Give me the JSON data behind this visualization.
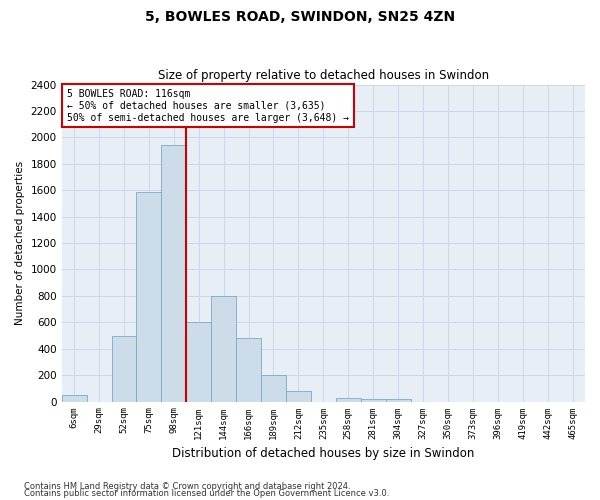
{
  "title": "5, BOWLES ROAD, SWINDON, SN25 4ZN",
  "subtitle": "Size of property relative to detached houses in Swindon",
  "xlabel": "Distribution of detached houses by size in Swindon",
  "ylabel": "Number of detached properties",
  "categories": [
    "6sqm",
    "29sqm",
    "52sqm",
    "75sqm",
    "98sqm",
    "121sqm",
    "144sqm",
    "166sqm",
    "189sqm",
    "212sqm",
    "235sqm",
    "258sqm",
    "281sqm",
    "304sqm",
    "327sqm",
    "350sqm",
    "373sqm",
    "396sqm",
    "419sqm",
    "442sqm",
    "465sqm"
  ],
  "values": [
    50,
    0,
    500,
    1590,
    1940,
    600,
    800,
    480,
    200,
    80,
    0,
    25,
    20,
    20,
    0,
    0,
    0,
    0,
    0,
    0,
    0
  ],
  "bar_color": "#ccdce8",
  "bar_edge_color": "#7aaac8",
  "vline_color": "#cc0000",
  "vline_pos": 4.5,
  "annotation_text": "5 BOWLES ROAD: 116sqm\n← 50% of detached houses are smaller (3,635)\n50% of semi-detached houses are larger (3,648) →",
  "annotation_box_color": "#ffffff",
  "annotation_box_edge": "#cc0000",
  "ylim": [
    0,
    2400
  ],
  "yticks": [
    0,
    200,
    400,
    600,
    800,
    1000,
    1200,
    1400,
    1600,
    1800,
    2000,
    2200,
    2400
  ],
  "grid_color": "#ccd8e8",
  "background_color": "#e8eef5",
  "footer1": "Contains HM Land Registry data © Crown copyright and database right 2024.",
  "footer2": "Contains public sector information licensed under the Open Government Licence v3.0."
}
